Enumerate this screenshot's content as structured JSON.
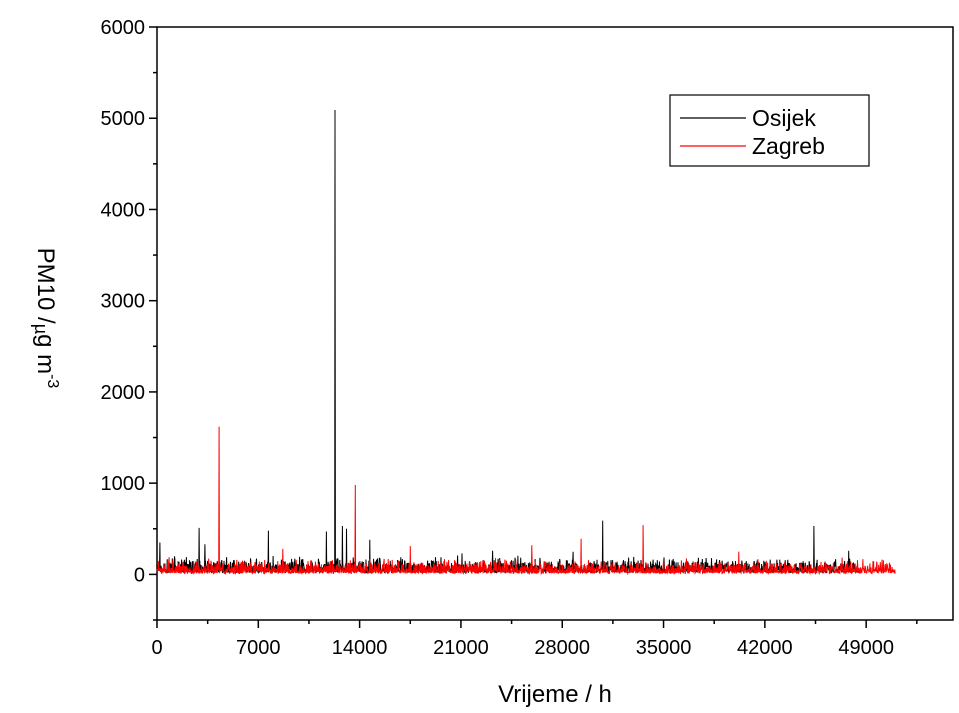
{
  "chart_data": {
    "type": "line",
    "xlabel": "Vrijeme / h",
    "ylabel": {
      "main": "PM10 /",
      "unit_mu": "µ",
      "unit_rest": "g m",
      "exponent": "-3"
    },
    "xlim": [
      0,
      55000
    ],
    "ylim": [
      -500,
      6000
    ],
    "x_ticks": [
      0,
      7000,
      14000,
      21000,
      28000,
      35000,
      42000,
      49000
    ],
    "y_ticks": [
      0,
      1000,
      2000,
      3000,
      4000,
      5000,
      6000
    ],
    "grid": false,
    "legend_position": "top-right",
    "series": [
      {
        "name": "Osijek",
        "color": "#000000",
        "baseline_range": [
          20,
          150
        ],
        "x_end": 48500,
        "spikes": [
          {
            "x": 200,
            "y": 350
          },
          {
            "x": 2900,
            "y": 510
          },
          {
            "x": 3300,
            "y": 330
          },
          {
            "x": 7700,
            "y": 480
          },
          {
            "x": 11700,
            "y": 470
          },
          {
            "x": 12300,
            "y": 5090
          },
          {
            "x": 12800,
            "y": 530
          },
          {
            "x": 13100,
            "y": 500
          },
          {
            "x": 14700,
            "y": 380
          },
          {
            "x": 23200,
            "y": 260
          },
          {
            "x": 30800,
            "y": 590
          },
          {
            "x": 45400,
            "y": 530
          },
          {
            "x": 47800,
            "y": 260
          }
        ]
      },
      {
        "name": "Zagreb",
        "color": "#ff0000",
        "baseline_range": [
          10,
          130
        ],
        "x_end": 51000,
        "spikes": [
          {
            "x": 4300,
            "y": 1620
          },
          {
            "x": 8700,
            "y": 280
          },
          {
            "x": 13700,
            "y": 980
          },
          {
            "x": 17500,
            "y": 310
          },
          {
            "x": 25900,
            "y": 320
          },
          {
            "x": 29300,
            "y": 390
          },
          {
            "x": 33600,
            "y": 540
          },
          {
            "x": 40200,
            "y": 250
          }
        ]
      }
    ]
  }
}
